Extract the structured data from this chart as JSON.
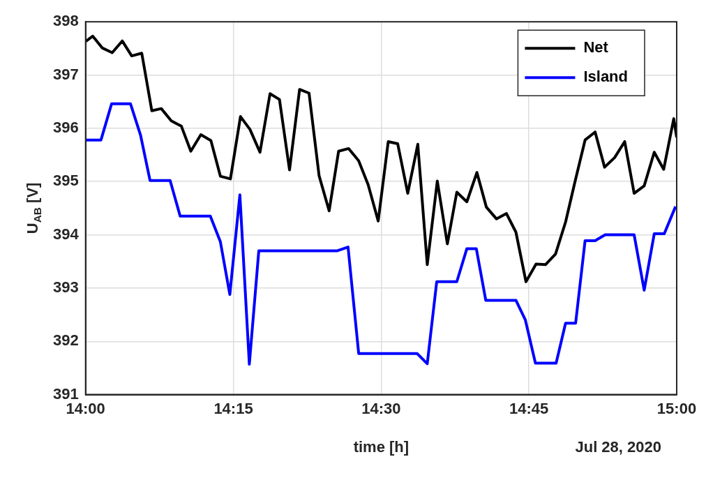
{
  "chart_data": {
    "type": "line",
    "xlabel": "time [h]",
    "ylabel": "U$_{AB}$ [V]",
    "annotations": [
      "Jul 28, 2020"
    ],
    "xlim": [
      14,
      15
    ],
    "xticks": [
      {
        "value": 14,
        "label": "14:00"
      },
      {
        "value": 14.25,
        "label": "14:15"
      },
      {
        "value": 14.5,
        "label": "14:30"
      },
      {
        "value": 14.75,
        "label": "14:45"
      },
      {
        "value": 15,
        "label": "15:00"
      }
    ],
    "ylim": [
      391,
      398
    ],
    "yticks": [
      391,
      392,
      393,
      394,
      395,
      396,
      397,
      398
    ],
    "grid": true,
    "legend": "top right",
    "line_style": "solid",
    "series": [
      {
        "name": "Net",
        "color": "#000000",
        "x": [
          14.0,
          14.012,
          14.028,
          14.045,
          14.062,
          14.078,
          14.095,
          14.112,
          14.128,
          14.145,
          14.162,
          14.178,
          14.195,
          14.212,
          14.228,
          14.245,
          14.262,
          14.278,
          14.295,
          14.312,
          14.328,
          14.345,
          14.362,
          14.378,
          14.395,
          14.412,
          14.428,
          14.445,
          14.462,
          14.478,
          14.495,
          14.512,
          14.528,
          14.545,
          14.562,
          14.578,
          14.595,
          14.612,
          14.628,
          14.645,
          14.662,
          14.678,
          14.695,
          14.712,
          14.728,
          14.745,
          14.762,
          14.778,
          14.795,
          14.812,
          14.828,
          14.845,
          14.862,
          14.878,
          14.895,
          14.912,
          14.928,
          14.945,
          14.962,
          14.978,
          14.995,
          15.0
        ],
        "values": [
          397.63,
          397.73,
          397.51,
          397.42,
          397.64,
          397.36,
          397.41,
          396.33,
          396.37,
          396.14,
          396.04,
          395.57,
          395.88,
          395.77,
          395.1,
          395.05,
          396.22,
          395.98,
          395.55,
          396.65,
          396.54,
          395.22,
          396.73,
          396.66,
          395.11,
          394.45,
          395.57,
          395.62,
          395.39,
          394.94,
          394.26,
          395.75,
          395.71,
          394.78,
          395.7,
          393.44,
          395.01,
          393.83,
          394.8,
          394.62,
          395.17,
          394.52,
          394.3,
          394.4,
          394.05,
          393.12,
          393.45,
          393.44,
          393.64,
          394.24,
          395.0,
          395.78,
          395.93,
          395.27,
          395.45,
          395.75,
          394.78,
          394.92,
          395.55,
          395.23,
          396.18,
          395.83
        ]
      },
      {
        "name": "Island",
        "color": "#0000ff",
        "x": [
          14.0,
          14.026,
          14.044,
          14.076,
          14.093,
          14.109,
          14.143,
          14.16,
          14.211,
          14.228,
          14.244,
          14.261,
          14.277,
          14.293,
          14.426,
          14.444,
          14.462,
          14.561,
          14.578,
          14.594,
          14.628,
          14.645,
          14.661,
          14.677,
          14.728,
          14.744,
          14.761,
          14.796,
          14.812,
          14.829,
          14.845,
          14.862,
          14.879,
          14.928,
          14.945,
          14.962,
          14.979,
          14.998
        ],
        "values": [
          395.78,
          395.78,
          396.46,
          396.46,
          395.87,
          395.02,
          395.02,
          394.35,
          394.35,
          393.87,
          392.88,
          394.75,
          391.57,
          393.7,
          393.7,
          393.77,
          391.77,
          391.77,
          391.58,
          393.12,
          393.12,
          393.74,
          393.74,
          392.77,
          392.77,
          392.4,
          391.59,
          391.59,
          392.34,
          392.34,
          393.89,
          393.89,
          394.0,
          394.0,
          392.96,
          394.02,
          394.02,
          394.53
        ]
      }
    ]
  }
}
